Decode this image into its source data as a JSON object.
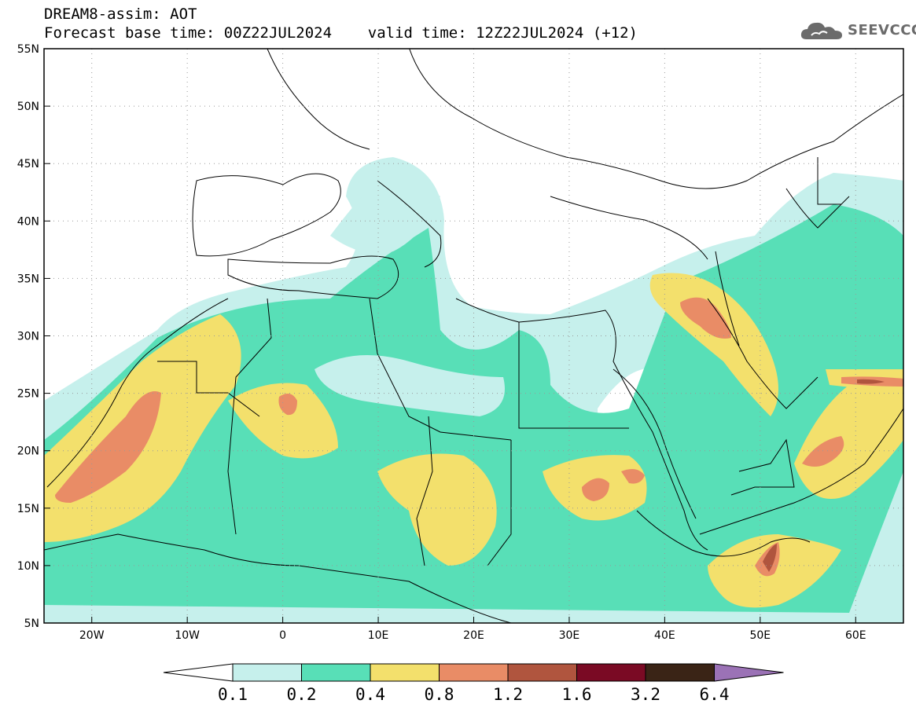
{
  "title": {
    "line1": "DREAM8-assim: AOT",
    "line2": "Forecast base time: 00Z22JUL2024    valid time: 12Z22JUL2024 (+12)"
  },
  "logo": {
    "text": "SEEVCCC",
    "icon": "cloud-logo-icon"
  },
  "map": {
    "lon_range": [
      -25,
      65
    ],
    "lat_range": [
      5,
      55
    ],
    "x_ticks": [
      "20W",
      "10W",
      "0",
      "10E",
      "20E",
      "30E",
      "40E",
      "50E",
      "60E"
    ],
    "x_tick_values": [
      -20,
      -10,
      0,
      10,
      20,
      30,
      40,
      50,
      60
    ],
    "y_ticks": [
      "5N",
      "10N",
      "15N",
      "20N",
      "25N",
      "30N",
      "35N",
      "40N",
      "45N",
      "50N",
      "55N"
    ],
    "y_tick_values": [
      5,
      10,
      15,
      20,
      25,
      30,
      35,
      40,
      45,
      50,
      55
    ],
    "grid": "dotted"
  },
  "colorbar": {
    "labels": [
      "0.1",
      "0.2",
      "0.4",
      "0.8",
      "1.2",
      "1.6",
      "3.2",
      "6.4"
    ],
    "colors": [
      "#c6f0ec",
      "#58dfb7",
      "#f3e06c",
      "#e98c66",
      "#b0553e",
      "#7a0a24",
      "#3a2416",
      "#9b72b6"
    ]
  }
}
